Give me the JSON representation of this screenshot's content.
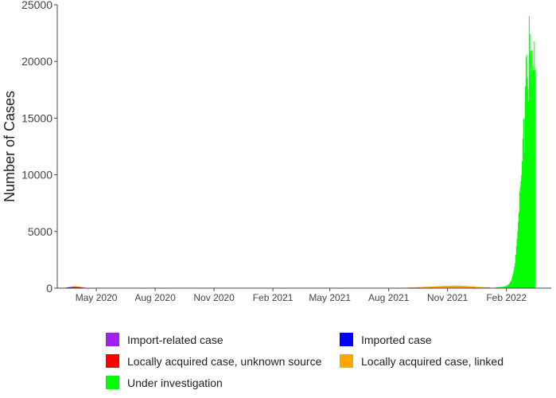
{
  "chart_data": {
    "type": "bar",
    "stacked": true,
    "ylabel": "Number of Cases",
    "xlabel": "",
    "ylim": [
      0,
      25000
    ],
    "yticks": [
      0,
      5000,
      10000,
      15000,
      20000,
      25000
    ],
    "xlim": [
      "2020-03-01",
      "2022-04-12"
    ],
    "xticks": [
      {
        "date": "2020-05-01",
        "label": "May 2020"
      },
      {
        "date": "2020-08-01",
        "label": "Aug 2020"
      },
      {
        "date": "2020-11-01",
        "label": "Nov 2020"
      },
      {
        "date": "2021-02-01",
        "label": "Feb 2021"
      },
      {
        "date": "2021-05-01",
        "label": "May 2021"
      },
      {
        "date": "2021-08-01",
        "label": "Aug 2021"
      },
      {
        "date": "2021-11-01",
        "label": "Nov 2021"
      },
      {
        "date": "2022-02-01",
        "label": "Feb 2022"
      }
    ],
    "grid": false,
    "legend_position": "bottom",
    "series": [
      {
        "name": "Import-related case",
        "color": "#a020f0",
        "points": [
          [
            "2020-03-15",
            20
          ],
          [
            "2020-03-25",
            40
          ],
          [
            "2020-04-05",
            30
          ],
          [
            "2020-04-20",
            10
          ]
        ]
      },
      {
        "name": "Imported case",
        "color": "#0000ff",
        "points": [
          [
            "2020-03-10",
            20
          ],
          [
            "2020-03-20",
            60
          ],
          [
            "2020-03-28",
            70
          ],
          [
            "2020-04-10",
            20
          ],
          [
            "2020-07-15",
            10
          ],
          [
            "2020-10-15",
            10
          ],
          [
            "2021-02-15",
            10
          ],
          [
            "2021-05-15",
            10
          ],
          [
            "2021-08-15",
            10
          ],
          [
            "2022-01-05",
            15
          ]
        ]
      },
      {
        "name": "Locally acquired case, unknown source",
        "color": "#ff0000",
        "points": [
          [
            "2020-03-25",
            20
          ],
          [
            "2020-04-05",
            30
          ],
          [
            "2020-04-15",
            20
          ],
          [
            "2020-08-10",
            10
          ],
          [
            "2021-09-01",
            15
          ],
          [
            "2021-10-15",
            20
          ],
          [
            "2021-11-15",
            25
          ],
          [
            "2021-12-15",
            15
          ]
        ]
      },
      {
        "name": "Locally acquired case, linked",
        "color": "#ffa500",
        "points": [
          [
            "2020-03-25",
            30
          ],
          [
            "2020-04-05",
            30
          ],
          [
            "2020-07-20",
            25
          ],
          [
            "2020-08-05",
            30
          ],
          [
            "2020-08-20",
            15
          ],
          [
            "2021-08-25",
            40
          ],
          [
            "2021-09-10",
            60
          ],
          [
            "2021-09-25",
            90
          ],
          [
            "2021-10-10",
            130
          ],
          [
            "2021-10-25",
            170
          ],
          [
            "2021-11-05",
            190
          ],
          [
            "2021-11-15",
            200
          ],
          [
            "2021-11-25",
            180
          ],
          [
            "2021-12-05",
            150
          ],
          [
            "2021-12-15",
            110
          ],
          [
            "2021-12-25",
            90
          ],
          [
            "2022-01-05",
            80
          ]
        ]
      },
      {
        "name": "Under investigation",
        "color": "#00ff00",
        "points": [
          [
            "2022-01-15",
            80
          ],
          [
            "2022-01-25",
            110
          ],
          [
            "2022-02-01",
            200
          ],
          [
            "2022-02-05",
            400
          ],
          [
            "2022-02-08",
            700
          ],
          [
            "2022-02-11",
            1300
          ],
          [
            "2022-02-14",
            2200
          ],
          [
            "2022-02-16",
            3700
          ],
          [
            "2022-02-18",
            5000
          ],
          [
            "2022-02-20",
            6700
          ],
          [
            "2022-02-21",
            8500
          ],
          [
            "2022-02-22",
            8900
          ],
          [
            "2022-02-24",
            10000
          ],
          [
            "2022-02-25",
            11200
          ],
          [
            "2022-02-26",
            13200
          ],
          [
            "2022-02-27",
            14900
          ],
          [
            "2022-02-28",
            15000
          ],
          [
            "2022-03-01",
            12000
          ],
          [
            "2022-03-02",
            17800
          ],
          [
            "2022-03-03",
            20400
          ],
          [
            "2022-03-04",
            20600
          ],
          [
            "2022-03-05",
            18500
          ],
          [
            "2022-03-06",
            17500
          ],
          [
            "2022-03-07",
            16500
          ],
          [
            "2022-03-08",
            24000
          ],
          [
            "2022-03-09",
            22400
          ],
          [
            "2022-03-10",
            20900
          ],
          [
            "2022-03-11",
            18800
          ],
          [
            "2022-03-12",
            21000
          ],
          [
            "2022-03-13",
            17700
          ],
          [
            "2022-03-14",
            19600
          ],
          [
            "2022-03-15",
            19200
          ],
          [
            "2022-03-16",
            21800
          ],
          [
            "2022-03-17",
            19300
          ]
        ]
      }
    ],
    "legend_order": [
      "Import-related case",
      "Imported case",
      "Locally acquired case, unknown source",
      "Locally acquired case, linked",
      "Under investigation"
    ]
  }
}
